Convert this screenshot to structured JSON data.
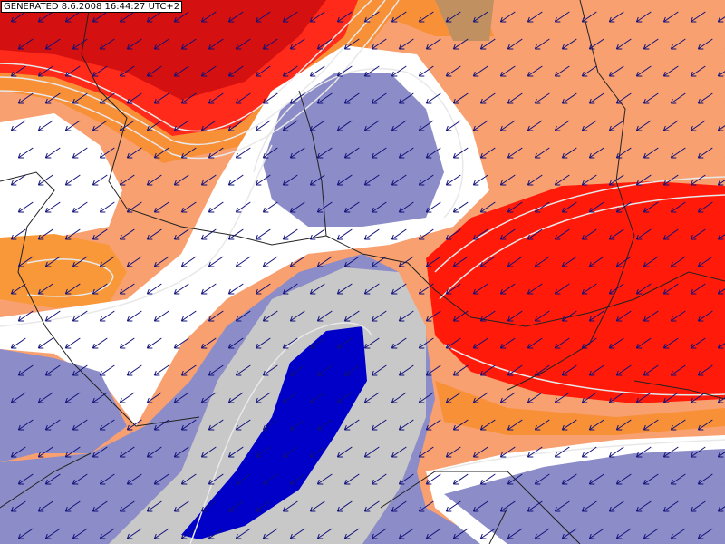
{
  "header": {
    "timestamp": "GENERATED 8.6.2008 16:44:27 UTC+2"
  }
}
